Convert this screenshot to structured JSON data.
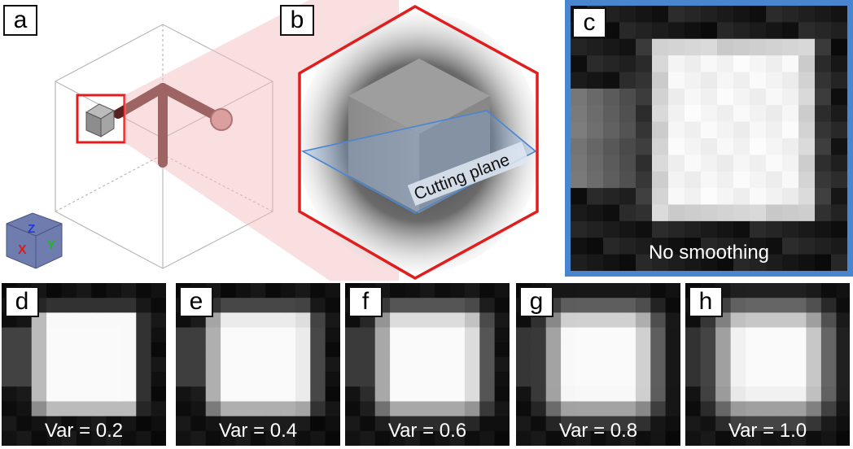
{
  "labels": {
    "a": "a",
    "b": "b",
    "c": "c",
    "d": "d",
    "e": "e",
    "f": "f",
    "g": "g",
    "h": "h"
  },
  "panel_b": {
    "cutting_plane_label": "Cutting plane"
  },
  "panel_c": {
    "caption": "No smoothing"
  },
  "thumbnails": [
    {
      "id": "d",
      "caption": "Var = 0.2",
      "variance": 0.2
    },
    {
      "id": "e",
      "caption": "Var = 0.4",
      "variance": 0.4
    },
    {
      "id": "f",
      "caption": "Var = 0.6",
      "variance": 0.6
    },
    {
      "id": "g",
      "caption": "Var = 0.8",
      "variance": 0.8
    },
    {
      "id": "h",
      "caption": "Var = 1.0",
      "variance": 1.0
    }
  ],
  "orientation_cube": {
    "axis_labels": [
      "Z",
      "X",
      "Y"
    ]
  },
  "colors": {
    "highlight_red": "#e01e1e",
    "frame_blue": "#4a86d0",
    "rod_color": "#5a1f1f",
    "beam_pink": "#f2b8b8"
  }
}
